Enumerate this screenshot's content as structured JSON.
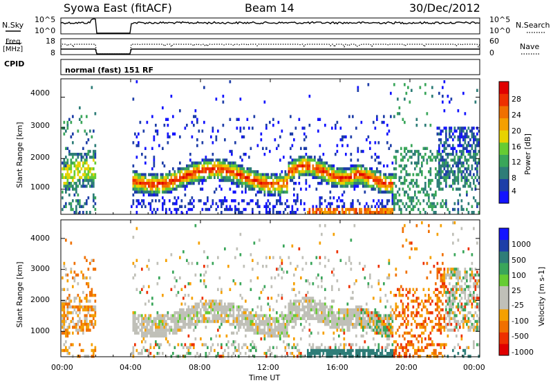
{
  "header": {
    "station": "Syowa East (fitACF)",
    "beam": "Beam 14",
    "date": "30/Dec/2012"
  },
  "top_panels": {
    "nsky_label": "N.Sky",
    "nsearch_label": "N.Search",
    "nsky_ticks": [
      "10^5",
      "10^0"
    ],
    "nsearch_ticks": [
      "10^5",
      "10^0"
    ],
    "freq_label": "Freq.",
    "freq_unit": "[MHz]",
    "freq_ticks": [
      "18",
      "8"
    ],
    "nave_label": "Nave",
    "nave_ticks": [
      "60",
      "0"
    ],
    "cpid_label": "CPID",
    "cpid_value": "normal (fast) 151 RF"
  },
  "colors": {
    "power_scale": [
      "#1414ff",
      "#1e3ea8",
      "#2e7d78",
      "#3aa65a",
      "#66cc33",
      "#e8d200",
      "#f5a000",
      "#f07000",
      "#ee3000",
      "#e00000"
    ],
    "velocity_scale": [
      "#e00000",
      "#ee3000",
      "#f07000",
      "#f5a000",
      "#c0c0b8",
      "#c0c0b8",
      "#66cc33",
      "#3aa65a",
      "#2e7d78",
      "#1e3ea8",
      "#1414ff"
    ]
  },
  "chart_data": [
    {
      "type": "heatmap",
      "panel": "power",
      "xlabel": "",
      "ylabel": "Slant Range [km]",
      "xlim": [
        0,
        24
      ],
      "ylim": [
        180,
        4600
      ],
      "yticks": [
        "4000",
        "3000",
        "2000",
        "1000"
      ],
      "colorbar_label": "Power [dB]",
      "colorbar_ticks": [
        "28",
        "24",
        "20",
        "16",
        "12",
        "8",
        "4"
      ],
      "data_gaps_ut": [
        [
          2.0,
          4.0
        ]
      ]
    },
    {
      "type": "heatmap",
      "panel": "velocity",
      "xlabel": "Time UT",
      "ylabel": "Slant Range [km]",
      "xlim": [
        0,
        24
      ],
      "ylim": [
        180,
        4600
      ],
      "xticks": [
        "00:00",
        "04:00",
        "08:00",
        "12:00",
        "16:00",
        "20:00",
        "00:00"
      ],
      "yticks": [
        "4000",
        "3000",
        "2000",
        "1000"
      ],
      "colorbar_label": "Velocity [m s-1]",
      "colorbar_ticks": [
        "1000",
        "500",
        "100",
        "25",
        "-25",
        "-100",
        "-500",
        "-1000"
      ],
      "data_gaps_ut": [
        [
          2.0,
          4.0
        ]
      ]
    }
  ]
}
